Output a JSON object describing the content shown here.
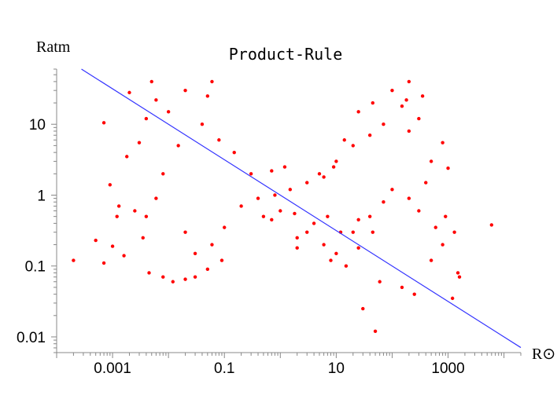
{
  "chart_data": {
    "type": "scatter",
    "title": "Product-Rule",
    "xlabel": "R⊙",
    "ylabel": "Ratm",
    "xscale": "log",
    "yscale": "log",
    "xlim": [
      0.0001,
      20000
    ],
    "ylim": [
      0.006,
      60
    ],
    "x_ticks": [
      0.001,
      0.1,
      10,
      1000
    ],
    "x_tick_labels": [
      "0.001",
      "0.1",
      "10",
      "1000"
    ],
    "y_ticks": [
      0.01,
      0.1,
      1,
      10
    ],
    "y_tick_labels": [
      "0.01",
      "0.1",
      "1",
      "10"
    ],
    "grid": false,
    "legend": "none",
    "colors": {
      "points": "#ff0000",
      "fit_line": "#3333ff",
      "axes": "#888888"
    },
    "fit_line": {
      "slope": -0.5,
      "through": [
        1,
        1
      ]
    },
    "points": [
      [
        0.0002,
        0.12
      ],
      [
        0.0005,
        0.23
      ],
      [
        0.0007,
        10.5
      ],
      [
        0.0007,
        0.11
      ],
      [
        0.0009,
        1.4
      ],
      [
        0.001,
        0.19
      ],
      [
        0.0012,
        0.5
      ],
      [
        0.0013,
        0.7
      ],
      [
        0.0016,
        0.14
      ],
      [
        0.0018,
        3.5
      ],
      [
        0.002,
        28
      ],
      [
        0.0025,
        0.6
      ],
      [
        0.003,
        5.5
      ],
      [
        0.0035,
        0.25
      ],
      [
        0.004,
        12
      ],
      [
        0.005,
        40
      ],
      [
        0.006,
        22
      ],
      [
        0.0045,
        0.08
      ],
      [
        0.008,
        0.07
      ],
      [
        0.02,
        0.065
      ],
      [
        0.012,
        0.06
      ],
      [
        0.03,
        0.07
      ],
      [
        0.05,
        0.09
      ],
      [
        0.09,
        0.12
      ],
      [
        0.5,
        0.5
      ],
      [
        0.7,
        0.45
      ],
      [
        2,
        0.25
      ],
      [
        3,
        0.3
      ],
      [
        6,
        0.2
      ],
      [
        10,
        0.15
      ],
      [
        20,
        0.3
      ],
      [
        40,
        0.5
      ],
      [
        70,
        0.8
      ],
      [
        100,
        1.2
      ],
      [
        200,
        0.9
      ],
      [
        300,
        0.6
      ],
      [
        400,
        1.5
      ],
      [
        600,
        0.35
      ],
      [
        900,
        0.5
      ],
      [
        1300,
        0.3
      ],
      [
        1500,
        0.08
      ],
      [
        1200,
        0.035
      ],
      [
        1600,
        0.07
      ],
      [
        800,
        0.2
      ],
      [
        500,
        0.12
      ],
      [
        250,
        0.04
      ],
      [
        150,
        0.05
      ],
      [
        60,
        0.06
      ],
      [
        30,
        0.025
      ],
      [
        50,
        0.012
      ],
      [
        15,
        0.1
      ],
      [
        8,
        0.12
      ],
      [
        25,
        0.18
      ],
      [
        1000,
        2.4
      ],
      [
        800,
        5.5
      ],
      [
        500,
        3
      ],
      [
        300,
        12
      ],
      [
        200,
        8
      ],
      [
        100,
        30
      ],
      [
        200,
        40
      ],
      [
        350,
        25
      ],
      [
        150,
        18
      ],
      [
        70,
        10
      ],
      [
        40,
        7
      ],
      [
        20,
        5
      ],
      [
        10,
        3
      ],
      [
        5,
        2
      ],
      [
        3,
        1.5
      ],
      [
        1.5,
        1.2
      ],
      [
        0.8,
        1
      ],
      [
        6000,
        0.38
      ],
      [
        0.3,
        2
      ],
      [
        0.15,
        4
      ],
      [
        0.08,
        6
      ],
      [
        0.04,
        10
      ],
      [
        0.05,
        25
      ],
      [
        0.06,
        40
      ],
      [
        0.02,
        30
      ],
      [
        0.01,
        15
      ],
      [
        0.015,
        5
      ],
      [
        0.008,
        2
      ],
      [
        0.006,
        0.9
      ],
      [
        0.004,
        0.5
      ],
      [
        0.02,
        0.3
      ],
      [
        0.03,
        0.15
      ],
      [
        0.06,
        0.2
      ],
      [
        0.1,
        0.35
      ],
      [
        0.2,
        0.7
      ],
      [
        0.4,
        0.9
      ],
      [
        1,
        0.6
      ],
      [
        1.8,
        0.55
      ],
      [
        4,
        0.4
      ],
      [
        12,
        0.3
      ],
      [
        25,
        0.45
      ],
      [
        45,
        0.3
      ],
      [
        2,
        0.18
      ],
      [
        1.2,
        2.5
      ],
      [
        0.7,
        2.2
      ],
      [
        6,
        1.8
      ],
      [
        9,
        2.5
      ],
      [
        14,
        6
      ],
      [
        25,
        15
      ],
      [
        180,
        22
      ],
      [
        45,
        20
      ],
      [
        7,
        0.5
      ]
    ]
  }
}
